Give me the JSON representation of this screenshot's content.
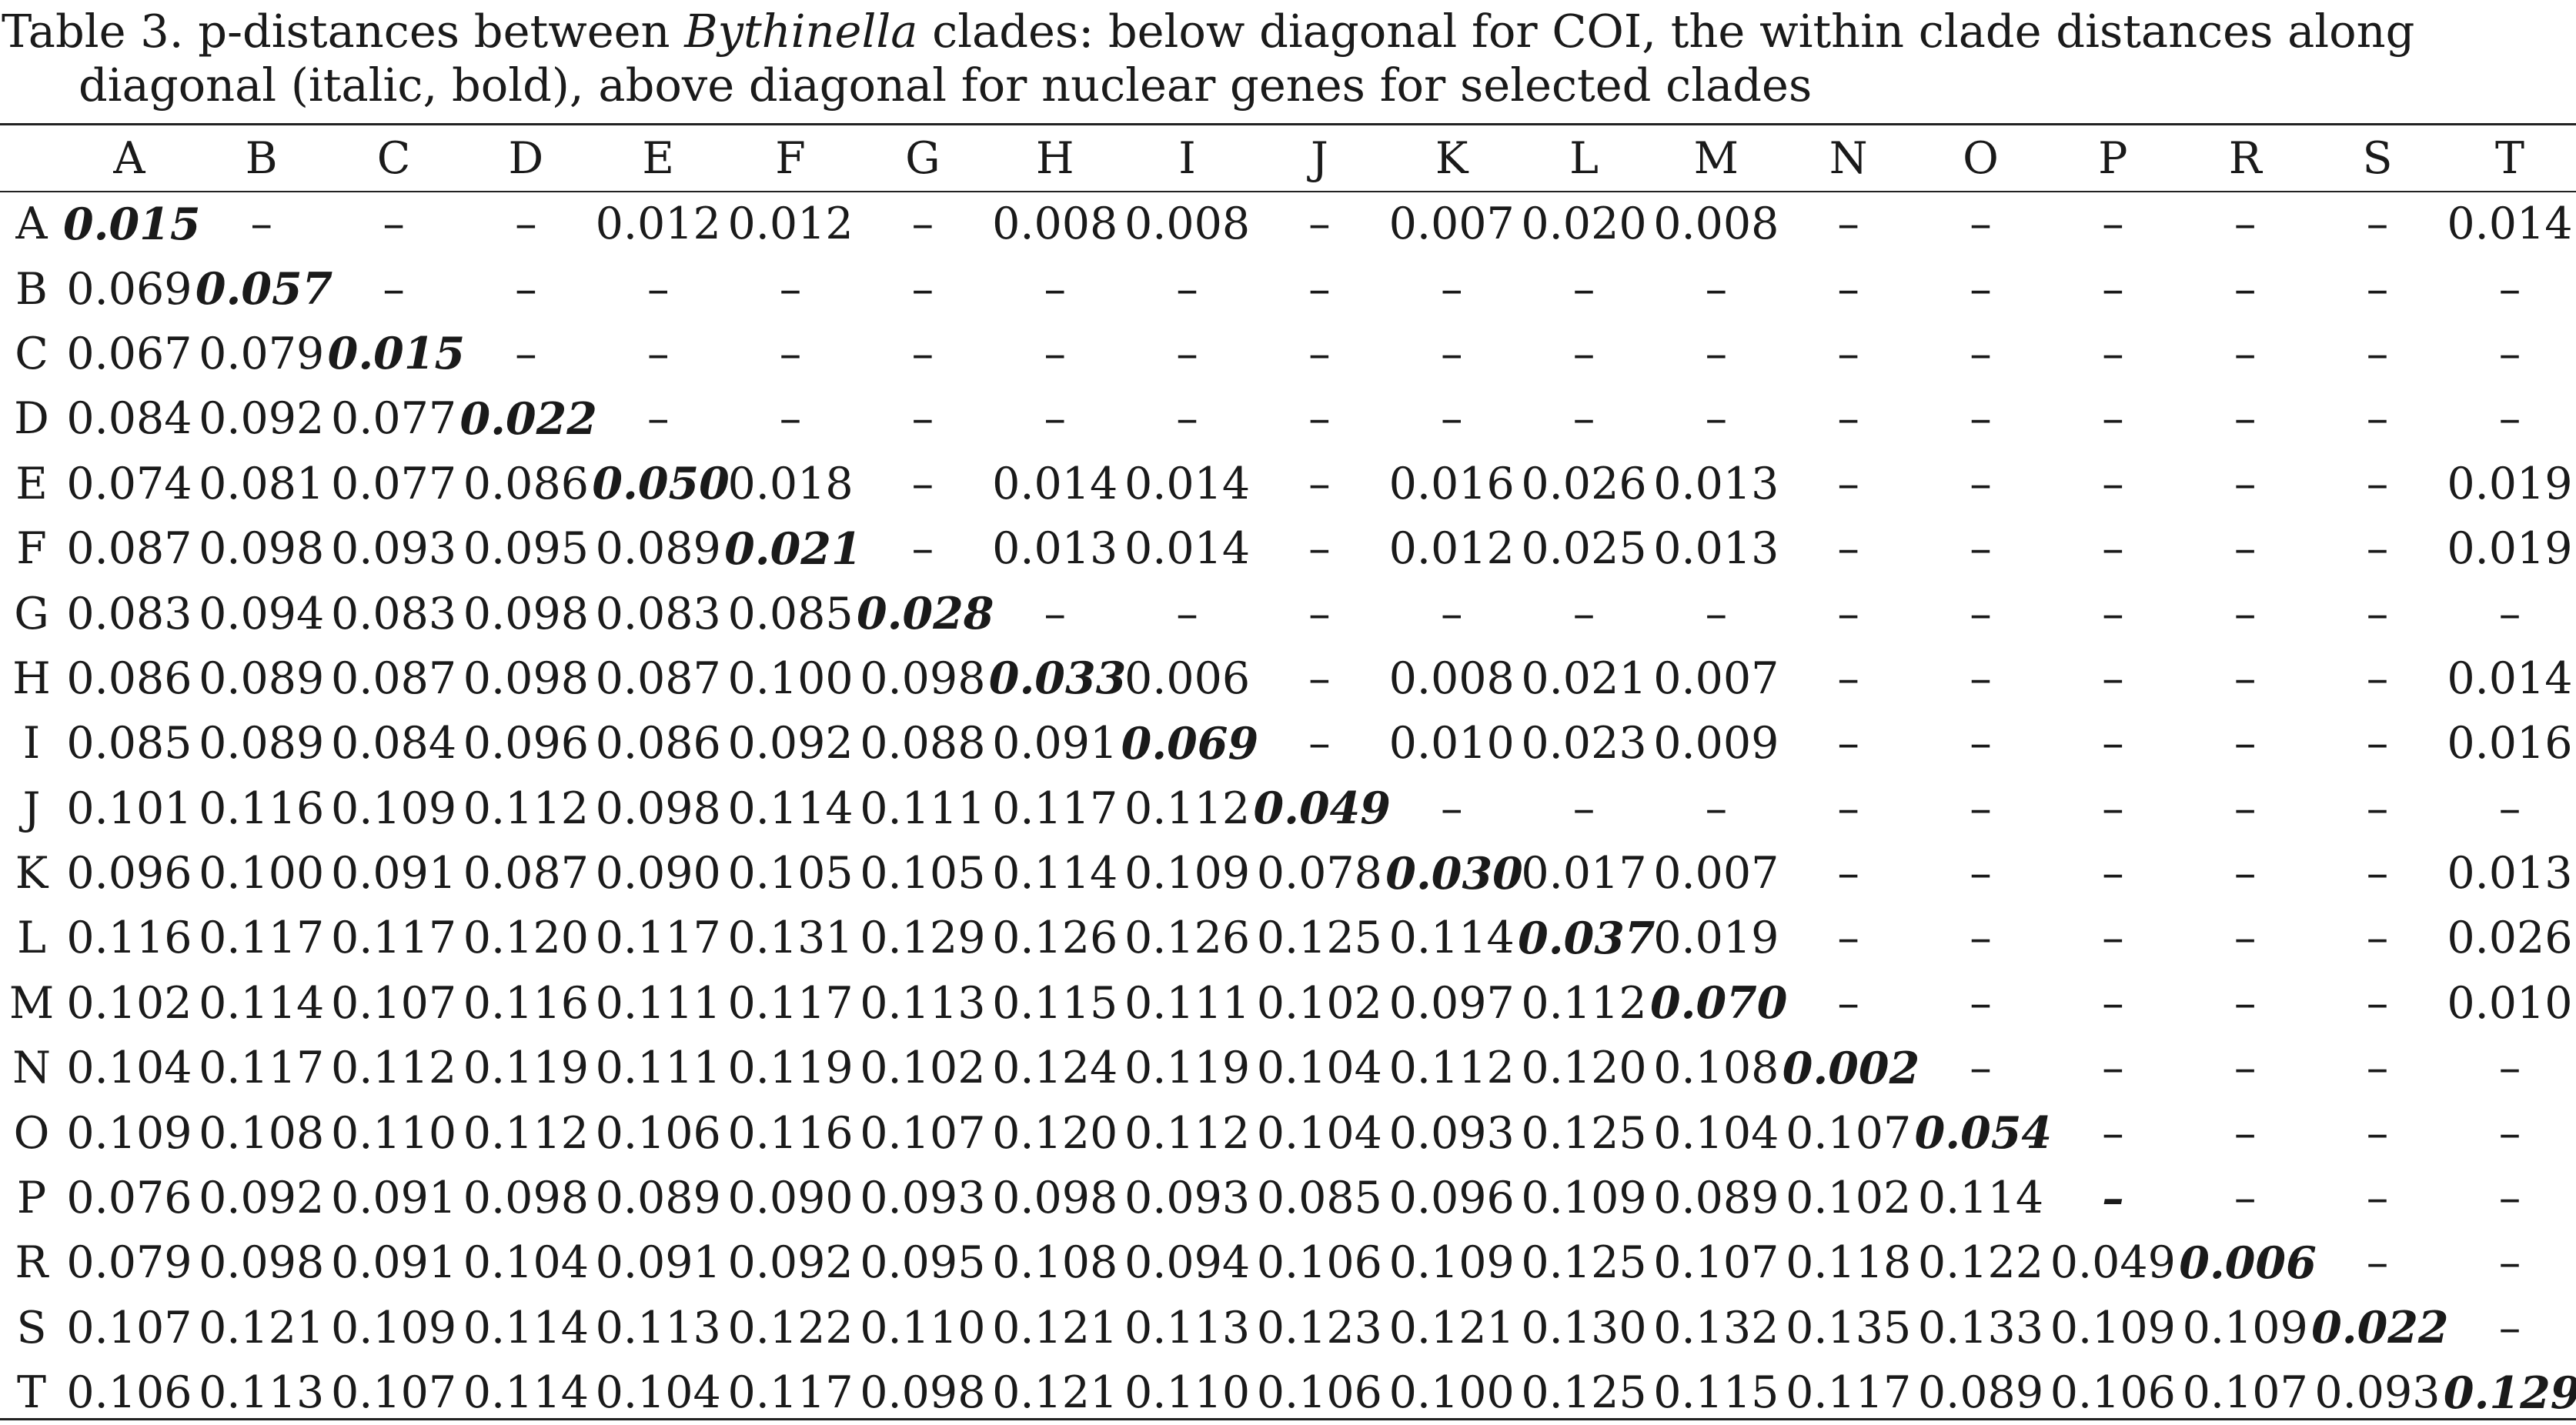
{
  "caption": {
    "prefix": "Table 3. p-distances between ",
    "genus": "Bythinella",
    "suffix": " clades: below diagonal for COI, the within clade distances along diagonal (italic, bold), above diagonal for nuclear genes for selected clades"
  },
  "table": {
    "columns": [
      "A",
      "B",
      "C",
      "D",
      "E",
      "F",
      "G",
      "H",
      "I",
      "J",
      "K",
      "L",
      "M",
      "N",
      "O",
      "P",
      "R",
      "S",
      "T"
    ],
    "rows": [
      {
        "label": "A",
        "cells": [
          "0.015",
          "–",
          "–",
          "–",
          "0.012",
          "0.012",
          "–",
          "0.008",
          "0.008",
          "–",
          "0.007",
          "0.020",
          "0.008",
          "–",
          "–",
          "–",
          "–",
          "–",
          "0.014"
        ]
      },
      {
        "label": "B",
        "cells": [
          "0.069",
          "0.057",
          "–",
          "–",
          "–",
          "–",
          "–",
          "–",
          "–",
          "–",
          "–",
          "–",
          "–",
          "–",
          "–",
          "–",
          "–",
          "–",
          "–"
        ]
      },
      {
        "label": "C",
        "cells": [
          "0.067",
          "0.079",
          "0.015",
          "–",
          "–",
          "–",
          "–",
          "–",
          "–",
          "–",
          "–",
          "–",
          "–",
          "–",
          "–",
          "–",
          "–",
          "–",
          "–"
        ]
      },
      {
        "label": "D",
        "cells": [
          "0.084",
          "0.092",
          "0.077",
          "0.022",
          "–",
          "–",
          "–",
          "–",
          "–",
          "–",
          "–",
          "–",
          "–",
          "–",
          "–",
          "–",
          "–",
          "–",
          "–"
        ]
      },
      {
        "label": "E",
        "cells": [
          "0.074",
          "0.081",
          "0.077",
          "0.086",
          "0.050",
          "0.018",
          "–",
          "0.014",
          "0.014",
          "–",
          "0.016",
          "0.026",
          "0.013",
          "–",
          "–",
          "–",
          "–",
          "–",
          "0.019"
        ]
      },
      {
        "label": "F",
        "cells": [
          "0.087",
          "0.098",
          "0.093",
          "0.095",
          "0.089",
          "0.021",
          "–",
          "0.013",
          "0.014",
          "–",
          "0.012",
          "0.025",
          "0.013",
          "–",
          "–",
          "–",
          "–",
          "–",
          "0.019"
        ]
      },
      {
        "label": "G",
        "cells": [
          "0.083",
          "0.094",
          "0.083",
          "0.098",
          "0.083",
          "0.085",
          "0.028",
          "–",
          "–",
          "–",
          "–",
          "–",
          "–",
          "–",
          "–",
          "–",
          "–",
          "–",
          "–"
        ]
      },
      {
        "label": "H",
        "cells": [
          "0.086",
          "0.089",
          "0.087",
          "0.098",
          "0.087",
          "0.100",
          "0.098",
          "0.033",
          "0.006",
          "–",
          "0.008",
          "0.021",
          "0.007",
          "–",
          "–",
          "–",
          "–",
          "–",
          "0.014"
        ]
      },
      {
        "label": "I",
        "cells": [
          "0.085",
          "0.089",
          "0.084",
          "0.096",
          "0.086",
          "0.092",
          "0.088",
          "0.091",
          "0.069",
          "–",
          "0.010",
          "0.023",
          "0.009",
          "–",
          "–",
          "–",
          "–",
          "–",
          "0.016"
        ]
      },
      {
        "label": "J",
        "cells": [
          "0.101",
          "0.116",
          "0.109",
          "0.112",
          "0.098",
          "0.114",
          "0.111",
          "0.117",
          "0.112",
          "0.049",
          "–",
          "–",
          "–",
          "–",
          "–",
          "–",
          "–",
          "–",
          "–"
        ]
      },
      {
        "label": "K",
        "cells": [
          "0.096",
          "0.100",
          "0.091",
          "0.087",
          "0.090",
          "0.105",
          "0.105",
          "0.114",
          "0.109",
          "0.078",
          "0.030",
          "0.017",
          "0.007",
          "–",
          "–",
          "–",
          "–",
          "–",
          "0.013"
        ]
      },
      {
        "label": "L",
        "cells": [
          "0.116",
          "0.117",
          "0.117",
          "0.120",
          "0.117",
          "0.131",
          "0.129",
          "0.126",
          "0.126",
          "0.125",
          "0.114",
          "0.037",
          "0.019",
          "–",
          "–",
          "–",
          "–",
          "–",
          "0.026"
        ]
      },
      {
        "label": "M",
        "cells": [
          "0.102",
          "0.114",
          "0.107",
          "0.116",
          "0.111",
          "0.117",
          "0.113",
          "0.115",
          "0.111",
          "0.102",
          "0.097",
          "0.112",
          "0.070",
          "–",
          "–",
          "–",
          "–",
          "–",
          "0.010"
        ]
      },
      {
        "label": "N",
        "cells": [
          "0.104",
          "0.117",
          "0.112",
          "0.119",
          "0.111",
          "0.119",
          "0.102",
          "0.124",
          "0.119",
          "0.104",
          "0.112",
          "0.120",
          "0.108",
          "0.002",
          "–",
          "–",
          "–",
          "–",
          "–"
        ]
      },
      {
        "label": "O",
        "cells": [
          "0.109",
          "0.108",
          "0.110",
          "0.112",
          "0.106",
          "0.116",
          "0.107",
          "0.120",
          "0.112",
          "0.104",
          "0.093",
          "0.125",
          "0.104",
          "0.107",
          "0.054",
          "–",
          "–",
          "–",
          "–"
        ]
      },
      {
        "label": "P",
        "cells": [
          "0.076",
          "0.092",
          "0.091",
          "0.098",
          "0.089",
          "0.090",
          "0.093",
          "0.098",
          "0.093",
          "0.085",
          "0.096",
          "0.109",
          "0.089",
          "0.102",
          "0.114",
          "–",
          "–",
          "–",
          "–"
        ]
      },
      {
        "label": "R",
        "cells": [
          "0.079",
          "0.098",
          "0.091",
          "0.104",
          "0.091",
          "0.092",
          "0.095",
          "0.108",
          "0.094",
          "0.106",
          "0.109",
          "0.125",
          "0.107",
          "0.118",
          "0.122",
          "0.049",
          "0.006",
          "–",
          "–"
        ]
      },
      {
        "label": "S",
        "cells": [
          "0.107",
          "0.121",
          "0.109",
          "0.114",
          "0.113",
          "0.122",
          "0.110",
          "0.121",
          "0.113",
          "0.123",
          "0.121",
          "0.130",
          "0.132",
          "0.135",
          "0.133",
          "0.109",
          "0.109",
          "0.022",
          "–"
        ]
      },
      {
        "label": "T",
        "cells": [
          "0.106",
          "0.113",
          "0.107",
          "0.114",
          "0.104",
          "0.117",
          "0.098",
          "0.121",
          "0.110",
          "0.106",
          "0.100",
          "0.125",
          "0.115",
          "0.117",
          "0.089",
          "0.106",
          "0.107",
          "0.093",
          "0.129"
        ]
      }
    ]
  }
}
